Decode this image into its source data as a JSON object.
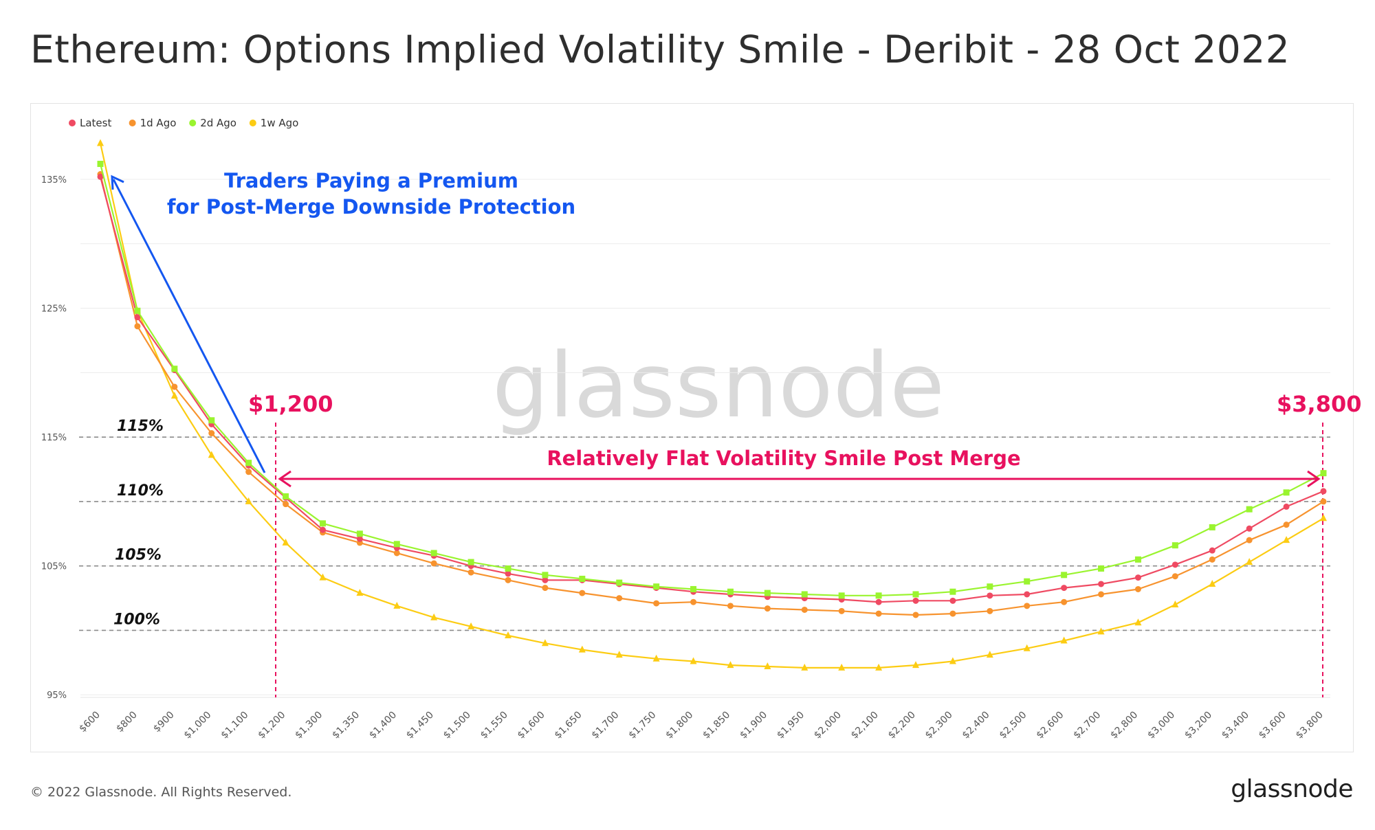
{
  "title": "Ethereum: Options Implied Volatility Smile - Deribit - 28 Oct 2022",
  "footer": {
    "copyright": "© 2022 Glassnode. All Rights Reserved.",
    "brand": "glassnode"
  },
  "watermark": "glassnode",
  "colors": {
    "latest": "#ef4a62",
    "d1": "#f7932e",
    "d2": "#9af42f",
    "w1": "#fccc13",
    "blueAnnot": "#1457f0",
    "pinkAnnot": "#e8115e"
  },
  "annotations": {
    "premium_line1": "Traders Paying a Premium",
    "premium_line2": "for Post-Merge Downside Protection",
    "left_price": "$1,200",
    "right_price": "$3,800",
    "flat_text": "Relatively Flat Volatility Smile Post Merge",
    "level_labels": [
      "115%",
      "110%",
      "105%",
      "100%"
    ],
    "level_values": [
      115,
      110,
      105,
      100
    ]
  },
  "chart_data": {
    "type": "line",
    "x": [
      "$600",
      "$800",
      "$900",
      "$1,000",
      "$1,100",
      "$1,200",
      "$1,300",
      "$1,350",
      "$1,400",
      "$1,450",
      "$1,500",
      "$1,550",
      "$1,600",
      "$1,650",
      "$1,700",
      "$1,750",
      "$1,800",
      "$1,850",
      "$1,900",
      "$1,950",
      "$2,000",
      "$2,100",
      "$2,200",
      "$2,300",
      "$2,400",
      "$2,500",
      "$2,600",
      "$2,700",
      "$2,800",
      "$3,000",
      "$3,200",
      "$3,400",
      "$3,600",
      "$3,800"
    ],
    "yticks": [
      "95%",
      "105%",
      "115%",
      "125%",
      "135%"
    ],
    "ytick_values": [
      95,
      105,
      115,
      125,
      135
    ],
    "ylim": [
      94.8,
      139.8
    ],
    "grid": true,
    "legend_position": "top-left",
    "series": [
      {
        "name": "Latest",
        "marker": "circle",
        "color": "#ef4a62",
        "values": [
          135.2,
          124.3,
          120.2,
          116.0,
          112.8,
          110.3,
          107.8,
          107.1,
          106.4,
          105.8,
          105.0,
          104.4,
          103.9,
          103.9,
          103.6,
          103.3,
          103.0,
          102.8,
          102.6,
          102.5,
          102.4,
          102.2,
          102.3,
          102.3,
          102.7,
          102.8,
          103.3,
          103.6,
          104.1,
          105.1,
          106.2,
          107.9,
          109.6,
          110.8
        ]
      },
      {
        "name": "1d Ago",
        "marker": "circle",
        "color": "#f7932e",
        "values": [
          135.4,
          123.6,
          118.9,
          115.3,
          112.3,
          109.8,
          107.6,
          106.8,
          106.0,
          105.2,
          104.5,
          103.9,
          103.3,
          102.9,
          102.5,
          102.1,
          102.2,
          101.9,
          101.7,
          101.6,
          101.5,
          101.3,
          101.2,
          101.3,
          101.5,
          101.9,
          102.2,
          102.8,
          103.2,
          104.2,
          105.5,
          107.0,
          108.2,
          110.0
        ]
      },
      {
        "name": "2d Ago",
        "marker": "square",
        "color": "#9af42f",
        "values": [
          136.2,
          124.8,
          120.3,
          116.3,
          113.0,
          110.4,
          108.3,
          107.5,
          106.7,
          106.0,
          105.3,
          104.8,
          104.3,
          104.0,
          103.7,
          103.4,
          103.2,
          103.0,
          102.9,
          102.8,
          102.7,
          102.7,
          102.8,
          103.0,
          103.4,
          103.8,
          104.3,
          104.8,
          105.5,
          106.6,
          108.0,
          109.4,
          110.7,
          112.2
        ]
      },
      {
        "name": "1w Ago",
        "marker": "triangle",
        "color": "#fccc13",
        "values": [
          137.8,
          124.8,
          118.2,
          113.6,
          110.0,
          106.8,
          104.1,
          102.9,
          101.9,
          101.0,
          100.3,
          99.6,
          99.0,
          98.5,
          98.1,
          97.8,
          97.6,
          97.3,
          97.2,
          97.1,
          97.1,
          97.1,
          97.3,
          97.6,
          98.1,
          98.6,
          99.2,
          99.9,
          100.6,
          102.0,
          103.6,
          105.3,
          107.0,
          108.7
        ]
      }
    ]
  }
}
